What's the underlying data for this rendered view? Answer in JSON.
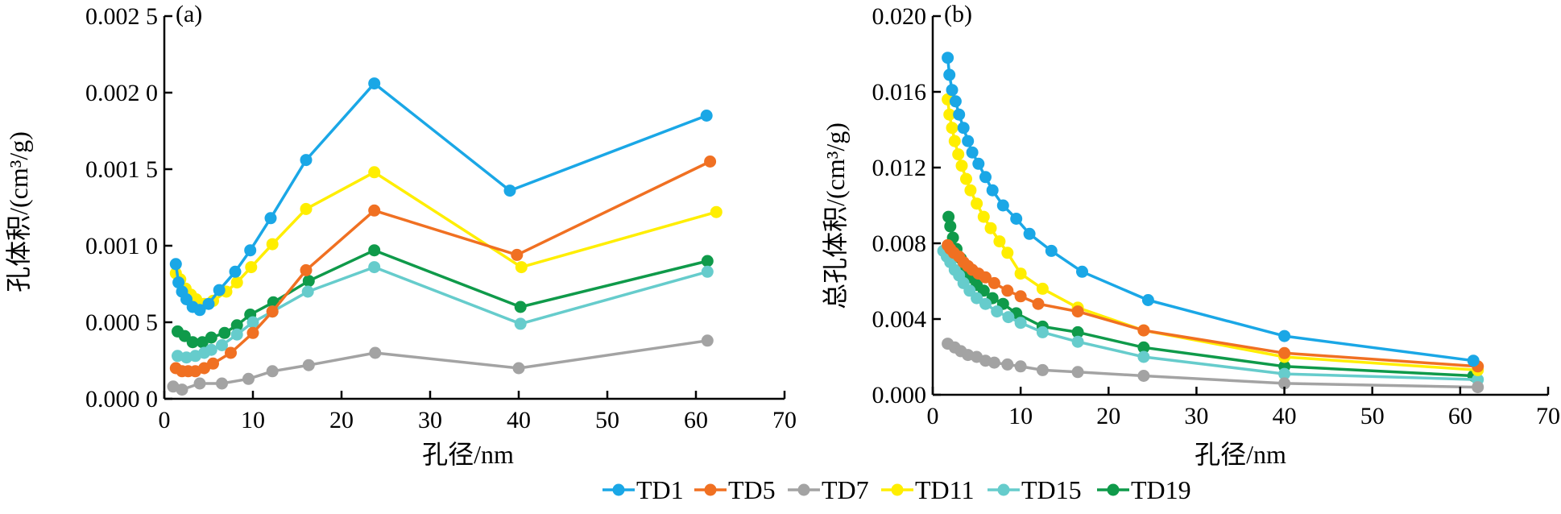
{
  "series_colors": {
    "TD1": "#1aa7e6",
    "TD5": "#f07022",
    "TD7": "#a3a3a3",
    "TD11": "#ffee00",
    "TD15": "#66cccc",
    "TD19": "#0f9a4a"
  },
  "legend": [
    "TD1",
    "TD5",
    "TD7",
    "TD11",
    "TD15",
    "TD19"
  ],
  "chart_data": [
    {
      "type": "line",
      "panel_label": "(a)",
      "xlabel": "孔径/nm",
      "ylabel": "孔体积/(cm³/g)",
      "xlim": [
        0,
        70
      ],
      "ylim": [
        0,
        0.0025
      ],
      "x_ticks": [
        "0",
        "10",
        "20",
        "30",
        "40",
        "50",
        "60",
        "70"
      ],
      "y_ticks": [
        "0.000 0",
        "0.000 5",
        "0.001 0",
        "0.001 5",
        "0.002 0",
        "0.002 5"
      ],
      "series": [
        {
          "name": "TD1",
          "points": [
            [
              1.3,
              0.00088
            ],
            [
              1.6,
              0.00076
            ],
            [
              2.0,
              0.0007
            ],
            [
              2.5,
              0.00065
            ],
            [
              3.2,
              0.0006
            ],
            [
              4.0,
              0.00058
            ],
            [
              5.0,
              0.00062
            ],
            [
              6.2,
              0.00071
            ],
            [
              8.0,
              0.00083
            ],
            [
              9.7,
              0.00097
            ],
            [
              12.0,
              0.00118
            ],
            [
              16.0,
              0.00156
            ],
            [
              23.7,
              0.00206
            ],
            [
              39.0,
              0.00136
            ],
            [
              61.2,
              0.00185
            ]
          ]
        },
        {
          "name": "TD5",
          "points": [
            [
              1.3,
              0.0002
            ],
            [
              2.0,
              0.00018
            ],
            [
              2.7,
              0.00018
            ],
            [
              3.5,
              0.00018
            ],
            [
              4.5,
              0.0002
            ],
            [
              5.5,
              0.00023
            ],
            [
              7.5,
              0.0003
            ],
            [
              10.0,
              0.00043
            ],
            [
              12.2,
              0.00057
            ],
            [
              16.0,
              0.00084
            ],
            [
              23.7,
              0.00123
            ],
            [
              39.8,
              0.00094
            ],
            [
              61.6,
              0.00155
            ]
          ]
        },
        {
          "name": "TD7",
          "points": [
            [
              1.0,
              8e-05
            ],
            [
              2.0,
              6e-05
            ],
            [
              4.0,
              0.0001
            ],
            [
              6.5,
              0.0001
            ],
            [
              9.5,
              0.00013
            ],
            [
              12.2,
              0.00018
            ],
            [
              16.3,
              0.00022
            ],
            [
              23.8,
              0.0003
            ],
            [
              40.0,
              0.0002
            ],
            [
              61.3,
              0.00038
            ]
          ]
        },
        {
          "name": "TD11",
          "points": [
            [
              1.3,
              0.00082
            ],
            [
              1.8,
              0.00078
            ],
            [
              2.4,
              0.00072
            ],
            [
              3.0,
              0.00068
            ],
            [
              3.6,
              0.00065
            ],
            [
              4.5,
              0.00062
            ],
            [
              5.5,
              0.00064
            ],
            [
              7.0,
              0.0007
            ],
            [
              8.2,
              0.00076
            ],
            [
              9.8,
              0.00086
            ],
            [
              12.2,
              0.00101
            ],
            [
              16.0,
              0.00124
            ],
            [
              23.7,
              0.00148
            ],
            [
              40.3,
              0.00086
            ],
            [
              62.3,
              0.00122
            ]
          ]
        },
        {
          "name": "TD15",
          "points": [
            [
              1.5,
              0.00028
            ],
            [
              2.5,
              0.00027
            ],
            [
              3.5,
              0.00028
            ],
            [
              4.5,
              0.0003
            ],
            [
              5.3,
              0.00032
            ],
            [
              6.5,
              0.00035
            ],
            [
              8.2,
              0.00042
            ],
            [
              10.0,
              0.0005
            ],
            [
              12.2,
              0.00057
            ],
            [
              16.2,
              0.0007
            ],
            [
              23.7,
              0.00086
            ],
            [
              40.2,
              0.00049
            ],
            [
              61.3,
              0.00083
            ]
          ]
        },
        {
          "name": "TD19",
          "points": [
            [
              1.5,
              0.00044
            ],
            [
              2.3,
              0.00041
            ],
            [
              3.2,
              0.00037
            ],
            [
              4.3,
              0.00037
            ],
            [
              5.3,
              0.0004
            ],
            [
              6.8,
              0.00043
            ],
            [
              8.2,
              0.00048
            ],
            [
              9.7,
              0.00055
            ],
            [
              12.3,
              0.00063
            ],
            [
              16.3,
              0.00077
            ],
            [
              23.7,
              0.00097
            ],
            [
              40.2,
              0.0006
            ],
            [
              61.3,
              0.0009
            ]
          ]
        }
      ]
    },
    {
      "type": "line",
      "panel_label": "(b)",
      "xlabel": "孔径/nm",
      "ylabel": "总孔体积/(cm³/g)",
      "xlim": [
        0,
        70
      ],
      "ylim": [
        0,
        0.02
      ],
      "x_ticks": [
        "0",
        "10",
        "20",
        "30",
        "40",
        "50",
        "60",
        "70"
      ],
      "y_ticks": [
        "0.000",
        "0.004",
        "0.008",
        "0.012",
        "0.016",
        "0.020"
      ],
      "series": [
        {
          "name": "TD1",
          "points": [
            [
              1.7,
              0.0178
            ],
            [
              1.9,
              0.0169
            ],
            [
              2.2,
              0.0161
            ],
            [
              2.6,
              0.0155
            ],
            [
              3.0,
              0.0148
            ],
            [
              3.5,
              0.0141
            ],
            [
              4.0,
              0.0134
            ],
            [
              4.5,
              0.0128
            ],
            [
              5.2,
              0.0122
            ],
            [
              6.0,
              0.0115
            ],
            [
              6.8,
              0.0108
            ],
            [
              8.0,
              0.01
            ],
            [
              9.5,
              0.0093
            ],
            [
              11.0,
              0.0085
            ],
            [
              13.5,
              0.0076
            ],
            [
              17.0,
              0.0065
            ],
            [
              24.5,
              0.005
            ],
            [
              40.0,
              0.0031
            ],
            [
              61.5,
              0.0018
            ]
          ]
        },
        {
          "name": "TD5",
          "points": [
            [
              1.7,
              0.0079
            ],
            [
              2.0,
              0.0077
            ],
            [
              2.4,
              0.0075
            ],
            [
              3.0,
              0.0073
            ],
            [
              3.5,
              0.007
            ],
            [
              4.0,
              0.0068
            ],
            [
              4.5,
              0.0066
            ],
            [
              5.2,
              0.0064
            ],
            [
              6.0,
              0.0062
            ],
            [
              7.0,
              0.0059
            ],
            [
              8.5,
              0.0055
            ],
            [
              10.0,
              0.0052
            ],
            [
              12.0,
              0.0048
            ],
            [
              16.5,
              0.0044
            ],
            [
              24.0,
              0.0034
            ],
            [
              40.0,
              0.0022
            ],
            [
              62.0,
              0.0015
            ]
          ]
        },
        {
          "name": "TD7",
          "points": [
            [
              1.7,
              0.0027
            ],
            [
              2.5,
              0.0025
            ],
            [
              3.2,
              0.0023
            ],
            [
              4.0,
              0.0021
            ],
            [
              5.0,
              0.002
            ],
            [
              6.0,
              0.0018
            ],
            [
              7.0,
              0.0017
            ],
            [
              8.5,
              0.0016
            ],
            [
              10.0,
              0.0015
            ],
            [
              12.5,
              0.0013
            ],
            [
              16.5,
              0.0012
            ],
            [
              24.0,
              0.001
            ],
            [
              40.0,
              0.0006
            ],
            [
              62.0,
              0.0004
            ]
          ]
        },
        {
          "name": "TD11",
          "points": [
            [
              1.7,
              0.0156
            ],
            [
              1.9,
              0.0148
            ],
            [
              2.2,
              0.0141
            ],
            [
              2.5,
              0.0134
            ],
            [
              2.9,
              0.0127
            ],
            [
              3.3,
              0.0121
            ],
            [
              3.8,
              0.0114
            ],
            [
              4.3,
              0.0108
            ],
            [
              5.0,
              0.0101
            ],
            [
              5.8,
              0.0094
            ],
            [
              6.6,
              0.0088
            ],
            [
              7.6,
              0.0081
            ],
            [
              8.5,
              0.0075
            ],
            [
              10.0,
              0.0064
            ],
            [
              12.5,
              0.0056
            ],
            [
              16.5,
              0.0046
            ],
            [
              24.0,
              0.0034
            ],
            [
              40.0,
              0.002
            ],
            [
              62.0,
              0.0013
            ]
          ]
        },
        {
          "name": "TD15",
          "points": [
            [
              1.2,
              0.0076
            ],
            [
              1.6,
              0.0073
            ],
            [
              2.0,
              0.007
            ],
            [
              2.5,
              0.0066
            ],
            [
              3.0,
              0.0063
            ],
            [
              3.5,
              0.0059
            ],
            [
              4.2,
              0.0055
            ],
            [
              5.0,
              0.0051
            ],
            [
              6.0,
              0.0048
            ],
            [
              7.3,
              0.0044
            ],
            [
              8.6,
              0.0041
            ],
            [
              10.0,
              0.0038
            ],
            [
              12.5,
              0.0033
            ],
            [
              16.5,
              0.0028
            ],
            [
              24.0,
              0.002
            ],
            [
              40.0,
              0.0011
            ],
            [
              62.0,
              0.0008
            ]
          ]
        },
        {
          "name": "TD19",
          "points": [
            [
              1.8,
              0.0094
            ],
            [
              2.0,
              0.0089
            ],
            [
              2.3,
              0.0083
            ],
            [
              2.7,
              0.0077
            ],
            [
              3.2,
              0.0072
            ],
            [
              3.7,
              0.0066
            ],
            [
              4.3,
              0.0062
            ],
            [
              5.0,
              0.0058
            ],
            [
              5.8,
              0.0055
            ],
            [
              6.8,
              0.0051
            ],
            [
              8.0,
              0.0048
            ],
            [
              9.5,
              0.0043
            ],
            [
              12.5,
              0.0036
            ],
            [
              16.5,
              0.0033
            ],
            [
              24.0,
              0.0025
            ],
            [
              40.0,
              0.0015
            ],
            [
              61.5,
              0.001
            ]
          ]
        }
      ]
    }
  ]
}
